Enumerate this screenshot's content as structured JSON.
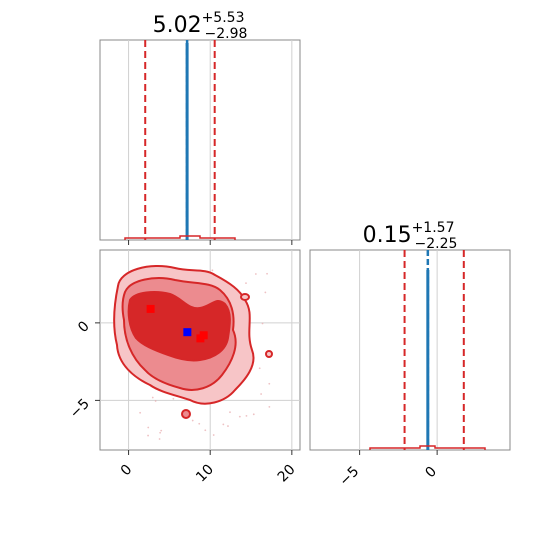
{
  "chart_data": [
    {
      "type": "histogram",
      "panel": "param-1-marginal",
      "title": {
        "median": "5.02",
        "plus": "+5.53",
        "minus": "−2.98"
      },
      "xlim": [
        -3.5,
        21.0
      ],
      "xticks": [
        0,
        10,
        20
      ],
      "grid": true,
      "ticklabels_shown": false,
      "quantiles_red_dashed": [
        2.04,
        10.55
      ],
      "truth_blue_dashed": 7.17,
      "colors": {
        "quantile": "#d62728",
        "truth": "#1f77b4",
        "hist": "#d62728"
      }
    },
    {
      "type": "histogram",
      "panel": "param-2-marginal",
      "title": {
        "median": "0.15",
        "plus": "+1.57",
        "minus": "−2.25"
      },
      "xlim": [
        -8.2,
        4.7
      ],
      "xticks": [
        -5,
        0
      ],
      "xtick_labels": [
        "−5",
        "0"
      ],
      "grid": true,
      "quantiles_red_dashed": [
        -2.1,
        1.72
      ],
      "truth_blue_dashed": -0.6,
      "colors": {
        "quantile": "#d62728",
        "truth": "#1f77b4",
        "hist": "#d62728"
      }
    },
    {
      "type": "contour",
      "panel": "joint-2d",
      "xlim": [
        -3.5,
        21.0
      ],
      "ylim": [
        -8.2,
        4.7
      ],
      "xticks": [
        0,
        10,
        20
      ],
      "xtick_labels": [
        "0",
        "10",
        "20"
      ],
      "yticks": [
        0,
        -5
      ],
      "ytick_labels": [
        "0",
        "−5"
      ],
      "grid": true,
      "levels": [
        "outer",
        "middle",
        "inner"
      ],
      "fill_colors": [
        "#f7c5c7",
        "#ec8b8f",
        "#d62728"
      ],
      "line_color": "#d62728",
      "markers": [
        {
          "x": 2.7,
          "y": 0.9,
          "color": "#ff0000",
          "shape": "square"
        },
        {
          "x": 8.8,
          "y": -1.0,
          "color": "#ff0000",
          "shape": "square"
        },
        {
          "x": 9.2,
          "y": -0.8,
          "color": "#ff0000",
          "shape": "square"
        },
        {
          "x": 7.2,
          "y": -0.6,
          "color": "#0000ff",
          "shape": "square"
        }
      ]
    }
  ]
}
